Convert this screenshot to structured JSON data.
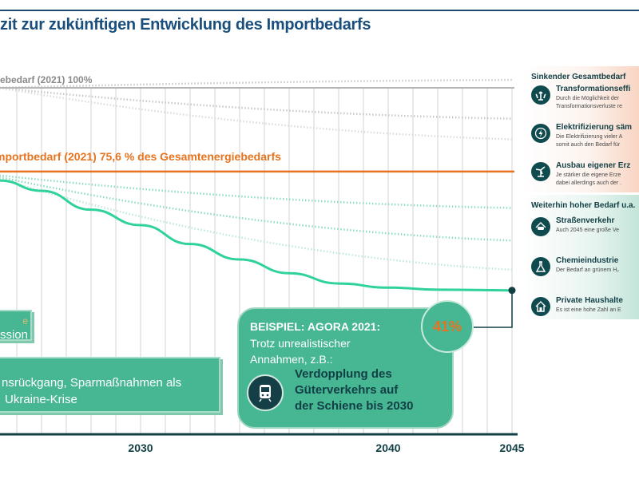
{
  "header": {
    "title": "zit zur zukünftigen Entwicklung des Importbedarfs"
  },
  "colors": {
    "navy": "#1a4e7c",
    "orange": "#e8731e",
    "green": "#2fd39a",
    "teal_box": "#47b692",
    "dark_teal": "#0f4a4f",
    "gray": "#b5b5b5"
  },
  "chart_data": {
    "type": "line",
    "x_axis": {
      "ticks": [
        2030,
        2040,
        2045
      ],
      "tick_labels": [
        "2030",
        "2040",
        "2045"
      ],
      "range": [
        2024.3,
        2045
      ],
      "grid": "vertical, yearly"
    },
    "y_unit": "% des Gesamtenergiebedarfs (2021)",
    "reference_lines": [
      {
        "label": "ebedarf (2021) 100%",
        "value": 100,
        "color": "#b5b5b5"
      },
      {
        "label": "mportbedarf (2021) 75,6 % des Gesamtenergiebedarfs",
        "value": 75.6,
        "color": "#e8731e"
      }
    ],
    "series": [
      {
        "style": "solid",
        "color": "#2fd39a",
        "x": [
          2024.3,
          2026,
          2028,
          2030,
          2032,
          2034,
          2036,
          2038,
          2040,
          2042,
          2045
        ],
        "y": [
          73,
          70,
          64.5,
          60,
          54.5,
          50,
          46,
          43,
          41.8,
          41.2,
          41
        ],
        "end_label": "41%"
      },
      {
        "style": "dotted",
        "color": "#c8c8c8",
        "x": [
          2024.3,
          2045
        ],
        "y": [
          100,
          102.3
        ]
      },
      {
        "style": "dotted",
        "color": "#c8c8c8",
        "x": [
          2024.3,
          2045
        ],
        "y": [
          100,
          91
        ]
      },
      {
        "style": "dotted",
        "color": "#dcdcdc",
        "x": [
          2024.3,
          2045
        ],
        "y": [
          100,
          85
        ]
      },
      {
        "style": "dotted",
        "color": "#8fdcc1",
        "x": [
          2024.3,
          2045
        ],
        "y": [
          74.5,
          65
        ]
      },
      {
        "style": "dotted",
        "color": "#8fdcc1",
        "x": [
          2024.3,
          2045
        ],
        "y": [
          74,
          55.5
        ]
      },
      {
        "style": "dotted",
        "color": "#bfe9da",
        "x": [
          2024.3,
          2045
        ],
        "y": [
          73.5,
          47
        ]
      }
    ]
  },
  "boxes": {
    "box1": {
      "line1": "e",
      "line2": "ssion"
    },
    "box2": {
      "line1": "nsrückgang, Sparmaßnahmen als",
      "line2": "Ukraine-Krise"
    },
    "agora": {
      "head": "BEISPIEL: AGORA 2021:",
      "sub1": "Trotz unrealistischer",
      "sub2": "Annahmen, z.B.:",
      "big1": "Verdopplung des",
      "big2": "Güterverkehrs auf",
      "big3": "der Schiene bis 2030",
      "icon": "train-icon"
    },
    "percent": "41%"
  },
  "panel": {
    "sinkend": {
      "heading": "Sinkender Gesamtbedarf",
      "items": [
        {
          "icon": "efficiency-icon",
          "title": "Transformationseffi",
          "d1": "Durch die Möglichkeit der",
          "d2": "Transformationsverluste re"
        },
        {
          "icon": "lightning-icon",
          "title": "Elektrifizierung säm",
          "d1": "Die Elektrifizierung vieler A",
          "d2": "somit auch den Bedarf für"
        },
        {
          "icon": "wind-turbine-icon",
          "title": "Ausbau eigener Erz",
          "d1": "Je stärker die eigene Erze",
          "d2": "dabei allerdings auch der ."
        }
      ]
    },
    "hoch": {
      "heading": "Weiterhin hoher Bedarf u.a.",
      "items": [
        {
          "icon": "car-icon",
          "title": "Straßenverkehr",
          "d1": "Auch 2045 eine große Ve"
        },
        {
          "icon": "flask-icon",
          "title": "Chemieindustrie",
          "d1": "Der Bedarf an grünem H₂"
        },
        {
          "icon": "house-icon",
          "title": "Private Haushalte",
          "d1": "Es ist eine hohe Zahl an E"
        }
      ]
    }
  }
}
